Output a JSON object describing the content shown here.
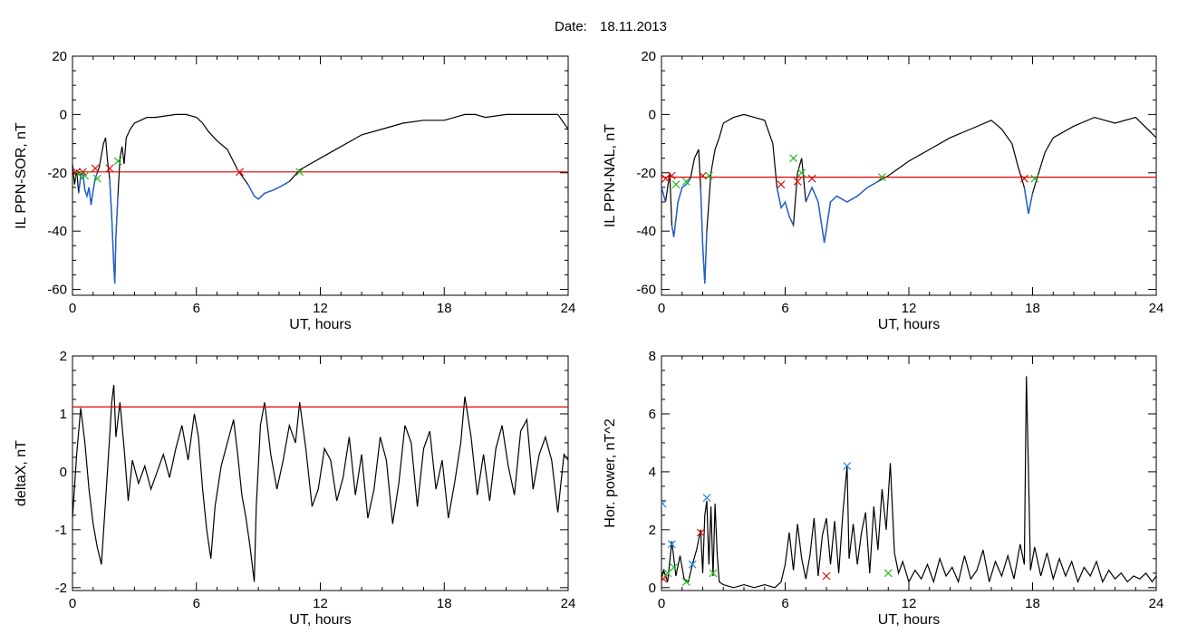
{
  "header": {
    "date_label": "Date:",
    "date_value": "18.11.2013"
  },
  "colors": {
    "trace": "#000000",
    "below_threshold": "#1f5fd0",
    "threshold_line": "#e00000",
    "marker_start": "#dd1111",
    "marker_end": "#22bb22",
    "marker_peak": "#2288dd"
  },
  "chart_data": [
    {
      "id": "sor",
      "type": "line",
      "ylabel": "IL PPN-SOR, nT",
      "xlabel": "UT, hours",
      "xlim": [
        0,
        24
      ],
      "ylim": [
        -62,
        20
      ],
      "xticks": [
        "0",
        "6",
        "12",
        "18",
        "24"
      ],
      "yticks": [
        "20",
        "0",
        "-20",
        "-40",
        "-60"
      ],
      "threshold": -19.7,
      "series": [
        {
          "x": [
            0,
            0.1,
            0.2,
            0.3,
            0.4,
            0.5,
            0.6,
            0.7,
            0.8,
            0.9,
            1.0,
            1.1,
            1.2,
            1.3,
            1.4,
            1.5,
            1.6,
            1.7,
            1.8,
            1.9,
            2.0,
            2.05,
            2.1,
            2.2,
            2.3,
            2.4,
            2.5,
            2.6,
            2.8,
            3.0,
            3.3,
            3.6,
            4.0,
            4.5,
            5.0,
            5.5,
            6.0,
            6.3,
            6.6,
            7.0,
            7.5,
            8.0,
            8.5,
            8.8,
            9.0,
            9.3,
            9.7,
            10.0,
            10.5,
            11.0,
            11.5,
            12.0,
            12.5,
            13.0,
            13.5,
            14.0,
            15.0,
            16.0,
            17.0,
            18.0,
            19.0,
            19.5,
            20.0,
            21.0,
            22.0,
            23.0,
            23.5,
            24.0
          ],
          "y": [
            -17,
            -24,
            -19,
            -27,
            -21,
            -20,
            -26,
            -28,
            -25,
            -31,
            -26,
            -22,
            -20,
            -18,
            -14,
            -10,
            -8,
            -16,
            -22,
            -35,
            -52,
            -58,
            -42,
            -28,
            -15,
            -11,
            -17,
            -8,
            -5,
            -3,
            -2,
            -1,
            -1,
            -0.5,
            0,
            0,
            -1,
            -3,
            -6,
            -9,
            -12,
            -19,
            -24,
            -28,
            -29,
            -27,
            -26,
            -25,
            -23,
            -19,
            -17,
            -15,
            -13,
            -11,
            -9,
            -7,
            -5,
            -3,
            -2,
            -2,
            0,
            0,
            -1,
            0,
            0,
            0,
            0,
            -5
          ]
        }
      ],
      "markers": [
        {
          "x": 0.2,
          "y": -19.7,
          "kind": "start"
        },
        {
          "x": 0.5,
          "y": -19.7,
          "kind": "start"
        },
        {
          "x": 1.1,
          "y": -18.5,
          "kind": "start"
        },
        {
          "x": 1.8,
          "y": -18.5,
          "kind": "start"
        },
        {
          "x": 8.1,
          "y": -19.7,
          "kind": "start"
        },
        {
          "x": 0.3,
          "y": -20.5,
          "kind": "end"
        },
        {
          "x": 0.6,
          "y": -21,
          "kind": "end"
        },
        {
          "x": 1.2,
          "y": -22,
          "kind": "end"
        },
        {
          "x": 2.2,
          "y": -16,
          "kind": "end"
        },
        {
          "x": 11.0,
          "y": -19.7,
          "kind": "end"
        }
      ]
    },
    {
      "id": "nal",
      "type": "line",
      "ylabel": "IL PPN-NAL, nT",
      "xlabel": "UT, hours",
      "xlim": [
        0,
        24
      ],
      "ylim": [
        -62,
        20
      ],
      "xticks": [
        "0",
        "6",
        "12",
        "18",
        "24"
      ],
      "yticks": [
        "20",
        "0",
        "-20",
        "-40",
        "-60"
      ],
      "threshold": -21.5,
      "series": [
        {
          "x": [
            0,
            0.2,
            0.4,
            0.5,
            0.6,
            0.8,
            1.0,
            1.2,
            1.4,
            1.6,
            1.8,
            1.9,
            2.0,
            2.1,
            2.2,
            2.4,
            2.6,
            2.8,
            3.0,
            3.5,
            4.0,
            4.5,
            5.0,
            5.4,
            5.6,
            5.8,
            6.0,
            6.2,
            6.4,
            6.6,
            6.8,
            7.0,
            7.3,
            7.6,
            7.9,
            8.2,
            8.5,
            9.0,
            9.5,
            10.0,
            10.5,
            11.0,
            12.0,
            13.0,
            14.0,
            15.0,
            16.0,
            16.5,
            17.0,
            17.3,
            17.6,
            17.8,
            18.0,
            18.3,
            18.6,
            19.0,
            20.0,
            21.0,
            22.0,
            23.0,
            24.0
          ],
          "y": [
            -25,
            -30,
            -20,
            -38,
            -42,
            -30,
            -25,
            -24,
            -22,
            -15,
            -12,
            -25,
            -45,
            -58,
            -40,
            -20,
            -12,
            -8,
            -3,
            -1,
            0,
            -1,
            -2,
            -10,
            -25,
            -32,
            -30,
            -35,
            -38,
            -20,
            -15,
            -30,
            -25,
            -30,
            -44,
            -30,
            -28,
            -30,
            -28,
            -25,
            -23,
            -21,
            -16,
            -12,
            -8,
            -5,
            -2,
            -5,
            -10,
            -18,
            -25,
            -34,
            -27,
            -20,
            -13,
            -8,
            -4,
            -1,
            -3,
            -1,
            -8
          ]
        }
      ],
      "markers": [
        {
          "x": 0.2,
          "y": -22,
          "kind": "start"
        },
        {
          "x": 0.5,
          "y": -21,
          "kind": "start"
        },
        {
          "x": 2.0,
          "y": -21,
          "kind": "start"
        },
        {
          "x": 5.8,
          "y": -24,
          "kind": "start"
        },
        {
          "x": 6.6,
          "y": -23,
          "kind": "start"
        },
        {
          "x": 7.3,
          "y": -22,
          "kind": "start"
        },
        {
          "x": 17.6,
          "y": -22,
          "kind": "start"
        },
        {
          "x": 0.7,
          "y": -24,
          "kind": "end"
        },
        {
          "x": 1.2,
          "y": -23,
          "kind": "end"
        },
        {
          "x": 2.3,
          "y": -21,
          "kind": "end"
        },
        {
          "x": 6.4,
          "y": -15,
          "kind": "end"
        },
        {
          "x": 6.8,
          "y": -20,
          "kind": "end"
        },
        {
          "x": 10.7,
          "y": -21.5,
          "kind": "end"
        },
        {
          "x": 18.1,
          "y": -22,
          "kind": "end"
        }
      ]
    },
    {
      "id": "deltax",
      "type": "line",
      "ylabel": "deltaX, nT",
      "xlabel": "UT, hours",
      "xlim": [
        0,
        24
      ],
      "ylim": [
        -2.05,
        2.0
      ],
      "xticks": [
        "0",
        "6",
        "12",
        "18",
        "24"
      ],
      "yticks": [
        "2",
        "1",
        "0",
        "-1",
        "-2"
      ],
      "threshold": 1.12,
      "series": [
        {
          "x": [
            0,
            0.2,
            0.4,
            0.6,
            0.8,
            1.0,
            1.2,
            1.4,
            1.6,
            1.8,
            1.9,
            2.0,
            2.1,
            2.3,
            2.5,
            2.7,
            2.9,
            3.2,
            3.5,
            3.8,
            4.1,
            4.4,
            4.7,
            5.0,
            5.3,
            5.6,
            5.9,
            6.1,
            6.3,
            6.5,
            6.7,
            6.9,
            7.2,
            7.5,
            7.8,
            8.0,
            8.2,
            8.4,
            8.6,
            8.8,
            8.9,
            9.1,
            9.3,
            9.6,
            9.9,
            10.2,
            10.5,
            10.8,
            11.0,
            11.3,
            11.6,
            11.9,
            12.2,
            12.5,
            12.8,
            13.1,
            13.4,
            13.7,
            14.0,
            14.3,
            14.6,
            14.9,
            15.2,
            15.5,
            15.8,
            16.1,
            16.4,
            16.7,
            17.0,
            17.3,
            17.6,
            17.9,
            18.2,
            18.5,
            18.8,
            19.0,
            19.3,
            19.6,
            19.9,
            20.2,
            20.5,
            20.8,
            21.1,
            21.4,
            21.7,
            22.0,
            22.3,
            22.6,
            22.9,
            23.2,
            23.5,
            23.8,
            24.0
          ],
          "y": [
            -0.8,
            0.3,
            1.1,
            0.5,
            -0.3,
            -0.9,
            -1.3,
            -1.6,
            -0.5,
            0.6,
            1.2,
            1.5,
            0.6,
            1.2,
            0.4,
            -0.5,
            0.2,
            -0.2,
            0.1,
            -0.3,
            0.0,
            0.3,
            -0.1,
            0.4,
            0.8,
            0.2,
            1.0,
            0.6,
            -0.3,
            -1.0,
            -1.5,
            -0.6,
            0.1,
            0.5,
            0.9,
            0.3,
            -0.4,
            -0.8,
            -1.3,
            -1.9,
            -0.6,
            0.8,
            1.2,
            0.3,
            -0.3,
            0.2,
            0.8,
            0.5,
            1.2,
            0.4,
            -0.6,
            -0.3,
            0.4,
            0.2,
            -0.5,
            -0.1,
            0.6,
            -0.4,
            0.3,
            -0.8,
            -0.3,
            0.6,
            0.2,
            -0.9,
            -0.2,
            0.8,
            0.5,
            -0.6,
            0.4,
            0.7,
            -0.3,
            0.2,
            -0.8,
            -0.2,
            0.5,
            1.3,
            0.6,
            -0.4,
            0.3,
            -0.5,
            0.4,
            0.8,
            0.1,
            -0.4,
            0.7,
            0.9,
            -0.3,
            0.3,
            0.6,
            0.2,
            -0.7,
            0.3,
            0.2
          ]
        }
      ],
      "markers": []
    },
    {
      "id": "power",
      "type": "line",
      "ylabel": "Hor. power, nT^2",
      "xlabel": "UT, hours",
      "xlim": [
        0,
        24
      ],
      "ylim": [
        -0.1,
        8
      ],
      "xticks": [
        "0",
        "6",
        "12",
        "18",
        "24"
      ],
      "yticks": [
        "8",
        "6",
        "4",
        "2",
        "0"
      ],
      "series": [
        {
          "x": [
            0,
            0.1,
            0.3,
            0.5,
            0.7,
            0.9,
            1.1,
            1.3,
            1.5,
            1.7,
            1.9,
            2.0,
            2.1,
            2.2,
            2.3,
            2.4,
            2.5,
            2.6,
            2.7,
            2.8,
            3.0,
            3.5,
            4.0,
            4.5,
            5.0,
            5.5,
            5.8,
            6.0,
            6.2,
            6.4,
            6.6,
            6.8,
            7.0,
            7.2,
            7.4,
            7.6,
            7.8,
            8.0,
            8.2,
            8.4,
            8.6,
            8.8,
            9.0,
            9.1,
            9.3,
            9.5,
            9.7,
            9.9,
            10.1,
            10.3,
            10.5,
            10.7,
            10.9,
            11.1,
            11.3,
            11.5,
            11.7,
            12.0,
            12.3,
            12.6,
            12.9,
            13.2,
            13.5,
            13.8,
            14.1,
            14.4,
            14.7,
            15.0,
            15.3,
            15.6,
            15.9,
            16.2,
            16.5,
            16.8,
            17.1,
            17.4,
            17.6,
            17.7,
            17.8,
            17.9,
            18.1,
            18.4,
            18.7,
            19.0,
            19.3,
            19.6,
            19.9,
            20.2,
            20.5,
            20.8,
            21.1,
            21.4,
            21.7,
            22.0,
            22.3,
            22.6,
            22.9,
            23.2,
            23.5,
            23.8,
            24.0
          ],
          "y": [
            0.3,
            0.6,
            0.2,
            1.6,
            0.4,
            1.1,
            0.3,
            0.2,
            0.8,
            1.3,
            2.0,
            0.5,
            2.5,
            3.0,
            0.8,
            2.8,
            0.4,
            2.9,
            1.2,
            0.2,
            0.1,
            0.0,
            0.1,
            0.0,
            0.1,
            0.0,
            0.2,
            0.8,
            1.9,
            0.6,
            2.2,
            1.0,
            0.3,
            1.1,
            2.4,
            0.4,
            1.8,
            2.4,
            0.8,
            2.3,
            0.5,
            2.6,
            4.2,
            1.0,
            2.2,
            0.8,
            1.9,
            2.6,
            0.5,
            2.8,
            1.3,
            3.4,
            2.0,
            4.3,
            1.2,
            0.5,
            0.9,
            0.2,
            0.6,
            0.3,
            0.8,
            0.2,
            1.0,
            0.4,
            0.7,
            0.2,
            1.1,
            0.3,
            0.6,
            1.3,
            0.2,
            0.9,
            0.4,
            1.1,
            0.3,
            1.5,
            0.8,
            7.3,
            4.0,
            0.6,
            1.4,
            0.4,
            1.2,
            0.3,
            1.0,
            0.4,
            0.9,
            0.2,
            0.7,
            0.4,
            0.9,
            0.2,
            0.6,
            0.3,
            0.5,
            0.2,
            0.4,
            0.3,
            0.5,
            0.2,
            0.4
          ]
        }
      ],
      "markers": [
        {
          "x": 0.05,
          "y": 2.9,
          "kind": "peak"
        },
        {
          "x": 0.5,
          "y": 1.5,
          "kind": "peak"
        },
        {
          "x": 1.5,
          "y": 0.8,
          "kind": "peak"
        },
        {
          "x": 2.2,
          "y": 3.1,
          "kind": "peak"
        },
        {
          "x": 9.0,
          "y": 4.2,
          "kind": "peak"
        },
        {
          "x": 0.1,
          "y": 0.3,
          "kind": "start"
        },
        {
          "x": 1.9,
          "y": 1.9,
          "kind": "start"
        },
        {
          "x": 8.0,
          "y": 0.4,
          "kind": "start"
        },
        {
          "x": 0.3,
          "y": 0.5,
          "kind": "end"
        },
        {
          "x": 0.6,
          "y": 0.7,
          "kind": "end"
        },
        {
          "x": 1.2,
          "y": 0.2,
          "kind": "end"
        },
        {
          "x": 2.5,
          "y": 0.5,
          "kind": "end"
        },
        {
          "x": 11.0,
          "y": 0.5,
          "kind": "end"
        }
      ]
    }
  ]
}
